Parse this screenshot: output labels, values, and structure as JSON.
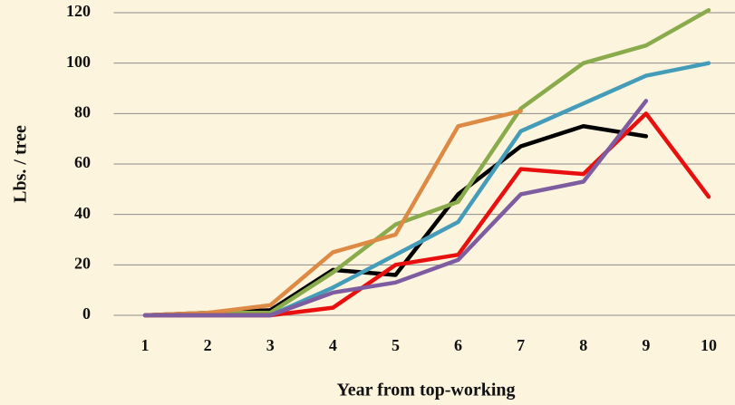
{
  "chart_data": {
    "type": "line",
    "xlabel": "Year from top-working",
    "ylabel": "Lbs. / tree",
    "categories": [
      "1",
      "2",
      "3",
      "4",
      "5",
      "6",
      "7",
      "8",
      "9",
      "10"
    ],
    "series": [
      {
        "color": "#000000",
        "values": [
          0,
          1,
          2,
          18,
          16,
          48,
          67,
          75,
          71,
          null
        ]
      },
      {
        "color": "#8aab4c",
        "values": [
          0,
          1,
          1,
          17,
          36,
          45,
          82,
          100,
          107,
          121
        ]
      },
      {
        "color": "#dd8a45",
        "values": [
          0,
          1,
          4,
          25,
          32,
          75,
          81,
          null,
          null,
          null
        ]
      },
      {
        "color": "#449cb8",
        "values": [
          0,
          0,
          0,
          11,
          24,
          37,
          73,
          84,
          95,
          100
        ]
      },
      {
        "color": "#e8100e",
        "values": [
          0,
          0,
          0,
          3,
          20,
          24,
          58,
          56,
          80,
          47
        ]
      },
      {
        "color": "#7d5ca0",
        "values": [
          0,
          0,
          0,
          9,
          13,
          22,
          48,
          53,
          85,
          null
        ]
      }
    ],
    "ylim": [
      0,
      120
    ],
    "yticks": [
      0,
      20,
      40,
      60,
      80,
      100,
      120
    ],
    "grid": true
  }
}
